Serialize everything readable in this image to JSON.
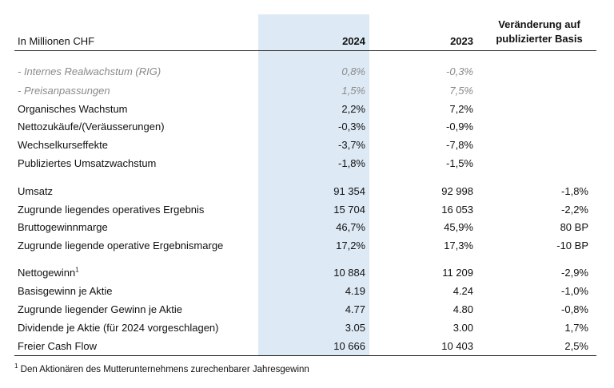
{
  "header": {
    "unit": "In Millionen CHF",
    "y2024": "2024",
    "y2023": "2023",
    "change_line1": "Veränderung auf",
    "change_line2": "publizierter Basis"
  },
  "rows": [
    {
      "label": "- Internes Realwachstum (RIG)",
      "v2024": "0,8%",
      "v2023": "-0,3%",
      "change": ""
    },
    {
      "label": "- Preisanpassungen",
      "v2024": "1,5%",
      "v2023": "7,5%",
      "change": ""
    },
    {
      "label": "Organisches Wachstum",
      "v2024": "2,2%",
      "v2023": "7,2%",
      "change": ""
    },
    {
      "label": "Nettozukäufe/(Veräusserungen)",
      "v2024": "-0,3%",
      "v2023": "-0,9%",
      "change": ""
    },
    {
      "label": "Wechselkurseffekte",
      "v2024": "-3,7%",
      "v2023": "-7,8%",
      "change": ""
    },
    {
      "label": "Publiziertes Umsatzwachstum",
      "v2024": "-1,8%",
      "v2023": "-1,5%",
      "change": ""
    },
    {
      "label": "Umsatz",
      "v2024": "91 354",
      "v2023": "92 998",
      "change": "-1,8%"
    },
    {
      "label": "Zugrunde liegendes operatives Ergebnis",
      "v2024": "15 704",
      "v2023": "16 053",
      "change": "-2,2%"
    },
    {
      "label": "Bruttogewinnmarge",
      "v2024": "46,7%",
      "v2023": "45,9%",
      "change": "80 BP"
    },
    {
      "label": "Zugrunde liegende operative Ergebnismarge",
      "v2024": "17,2%",
      "v2023": "17,3%",
      "change": "-10 BP"
    },
    {
      "label": "Nettogewinn",
      "sup": "1",
      "v2024": "10 884",
      "v2023": "11 209",
      "change": "-2,9%"
    },
    {
      "label": "Basisgewinn je Aktie",
      "v2024": "4.19",
      "v2023": "4.24",
      "change": "-1,0%"
    },
    {
      "label": "Zugrunde liegender Gewinn je Aktie",
      "v2024": "4.77",
      "v2023": "4.80",
      "change": "-0,8%"
    },
    {
      "label": "Dividende je Aktie (für 2024 vorgeschlagen)",
      "v2024": "3.05",
      "v2023": "3.00",
      "change": "1,7%"
    },
    {
      "label": "Freier Cash Flow",
      "v2024": "10 666",
      "v2023": "10 403",
      "change": "2,5%"
    }
  ],
  "footnote": {
    "marker": "1",
    "text": " Den Aktionären des Mutterunternehmens zurechenbarer Jahresgewinn"
  }
}
